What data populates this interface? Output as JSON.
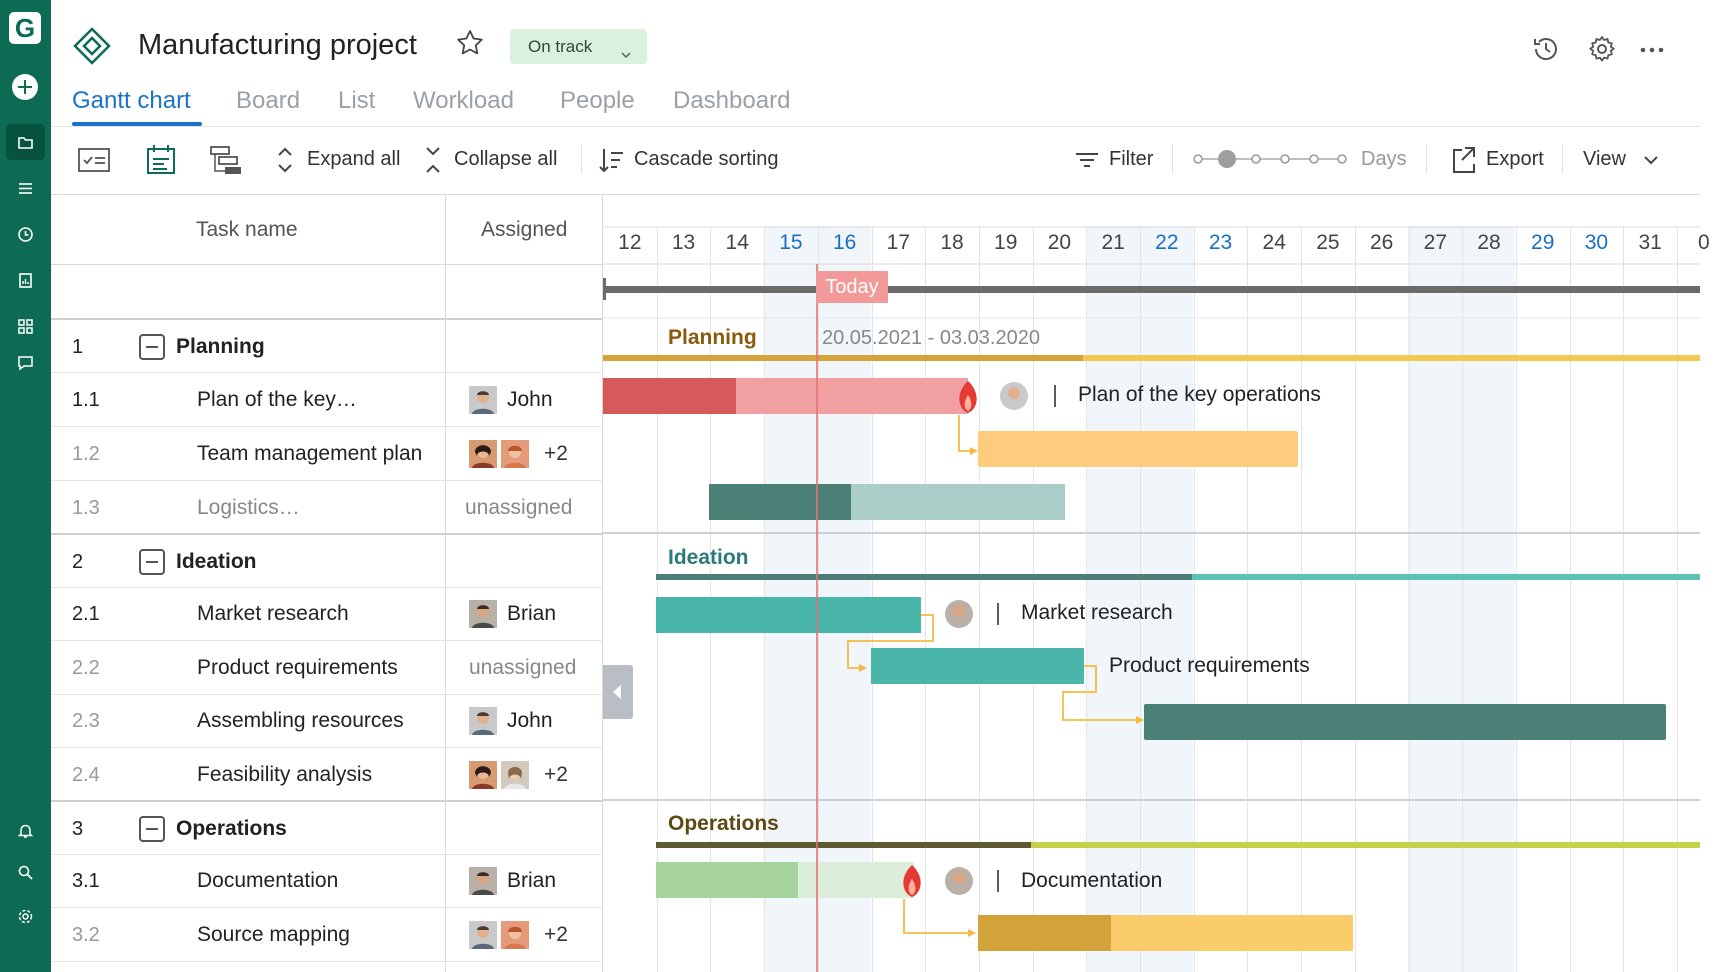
{
  "app": {
    "logo_letter": "G"
  },
  "project": {
    "title": "Manufacturing project",
    "status": "On track"
  },
  "tabs": [
    {
      "label": "Gantt chart",
      "active": true
    },
    {
      "label": "Board"
    },
    {
      "label": "List"
    },
    {
      "label": "Workload"
    },
    {
      "label": "People"
    },
    {
      "label": "Dashboard"
    }
  ],
  "toolbar": {
    "expand_all": "Expand all",
    "collapse_all": "Collapse all",
    "cascade_sorting": "Cascade sorting",
    "filter": "Filter",
    "zoom_level": "Days",
    "export": "Export",
    "view": "View"
  },
  "table": {
    "col_task": "Task name",
    "col_assigned": "Assigned",
    "rows": [
      {
        "num": "1",
        "name": "Planning",
        "group": true
      },
      {
        "num": "1.1",
        "name": "Plan of the key…",
        "assignee": "John"
      },
      {
        "num": "1.2",
        "name": "Team management plan",
        "assignee": "+2"
      },
      {
        "num": "1.3",
        "name": "Logistics…",
        "assignee": "unassigned"
      },
      {
        "num": "2",
        "name": "Ideation",
        "group": true
      },
      {
        "num": "2.1",
        "name": "Market research",
        "assignee": "Brian"
      },
      {
        "num": "2.2",
        "name": "Product requirements",
        "assignee": "unassigned"
      },
      {
        "num": "2.3",
        "name": "Assembling resources",
        "assignee": "John"
      },
      {
        "num": "2.4",
        "name": "Feasibility analysis",
        "assignee": "+2"
      },
      {
        "num": "3",
        "name": "Operations",
        "group": true
      },
      {
        "num": "3.1",
        "name": "Documentation",
        "assignee": "Brian"
      },
      {
        "num": "3.2",
        "name": "Source mapping",
        "assignee": "+2"
      }
    ]
  },
  "timeline": {
    "days": [
      "12",
      "13",
      "14",
      "15",
      "16",
      "17",
      "18",
      "19",
      "20",
      "21",
      "22",
      "23",
      "24",
      "25",
      "26",
      "27",
      "28",
      "29",
      "30",
      "31",
      "0"
    ],
    "weekend_days": [
      "15",
      "16",
      "22",
      "23",
      "29",
      "30"
    ],
    "today_label": "Today",
    "today_day": 16,
    "groups": [
      {
        "label": "Planning",
        "range": "20.05.2021 - 03.03.2020",
        "color": "#8a5a0c"
      },
      {
        "label": "Ideation",
        "color": "#2c7a79"
      },
      {
        "label": "Operations",
        "color": "#5b4a12"
      }
    ],
    "bar_labels": {
      "plan_key_ops": "Plan of the key operations",
      "market_research": "Market research",
      "product_requirements": "Product requirements",
      "documentation": "Documentation"
    }
  },
  "colors": {
    "brand": "#0c6b52",
    "accent": "#1a73c9",
    "today_line": "#e57373"
  }
}
